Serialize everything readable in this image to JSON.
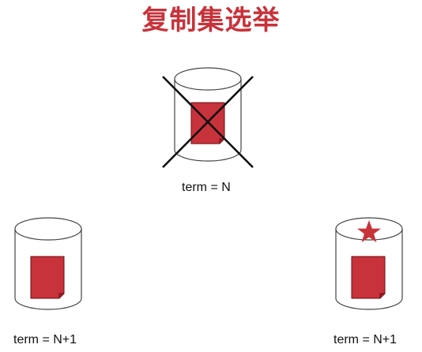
{
  "title": "复制集选举",
  "colors": {
    "title": "#c8323a",
    "document_fill": "#c8323a",
    "cylinder_stroke": "#444444",
    "cross": "#111111"
  },
  "nodes": [
    {
      "id": "top",
      "term_label": "term = N",
      "crossed_out": true,
      "primary_star": false
    },
    {
      "id": "left",
      "term_label": "term = N+1",
      "crossed_out": false,
      "primary_star": false
    },
    {
      "id": "right",
      "term_label": "term = N+1",
      "crossed_out": false,
      "primary_star": true
    }
  ],
  "icons": {
    "database": "database-cylinder-icon",
    "document": "document-icon",
    "cross": "cross-out-icon",
    "star": "star-icon"
  }
}
